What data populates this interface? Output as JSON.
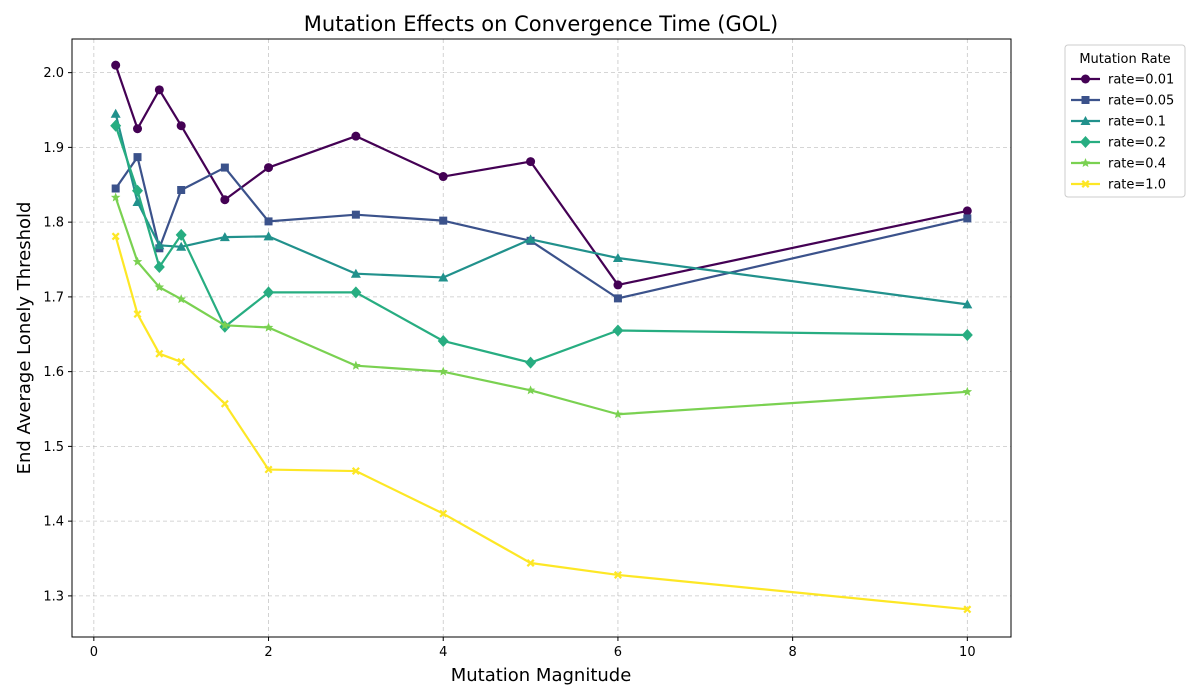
{
  "chart_data": {
    "type": "line",
    "title": "Mutation Effects on Convergence Time (GOL)",
    "xlabel": "Mutation Magnitude",
    "ylabel": "End Average Lonely Threshold",
    "xlim": [
      -0.25,
      10.5
    ],
    "ylim": [
      1.245,
      2.045
    ],
    "xticks": [
      0,
      2,
      4,
      6,
      8,
      10
    ],
    "yticks": [
      1.3,
      1.4,
      1.5,
      1.6,
      1.7,
      1.8,
      1.9,
      2.0
    ],
    "xtick_labels": [
      "0",
      "2",
      "4",
      "6",
      "8",
      "10"
    ],
    "ytick_labels": [
      "1.3",
      "1.4",
      "1.5",
      "1.6",
      "1.7",
      "1.8",
      "1.9",
      "2.0"
    ],
    "grid": true,
    "legend_title": "Mutation Rate",
    "legend_position": "outside-right",
    "x": [
      0.25,
      0.5,
      0.75,
      1,
      1.5,
      2,
      3,
      4,
      5,
      6,
      10
    ],
    "series": [
      {
        "name": "rate=0.01",
        "color": "#440154",
        "marker": "circle",
        "values": [
          2.01,
          1.925,
          1.977,
          1.929,
          1.83,
          1.873,
          1.915,
          1.861,
          1.881,
          1.716,
          1.815
        ]
      },
      {
        "name": "rate=0.05",
        "color": "#3b528b",
        "marker": "square",
        "values": [
          1.845,
          1.887,
          1.765,
          1.843,
          1.873,
          1.801,
          1.81,
          1.802,
          1.775,
          1.698,
          1.805
        ]
      },
      {
        "name": "rate=0.1",
        "color": "#21918c",
        "marker": "triangle",
        "values": [
          1.945,
          1.827,
          1.769,
          1.767,
          1.78,
          1.781,
          1.731,
          1.726,
          1.777,
          1.752,
          1.69
        ]
      },
      {
        "name": "rate=0.2",
        "color": "#27ad81",
        "marker": "diamond",
        "values": [
          1.929,
          1.842,
          1.74,
          1.783,
          1.66,
          1.706,
          1.706,
          1.641,
          1.612,
          1.655,
          1.649
        ]
      },
      {
        "name": "rate=0.4",
        "color": "#7ad151",
        "marker": "star",
        "values": [
          1.833,
          1.747,
          1.713,
          1.697,
          1.662,
          1.659,
          1.608,
          1.6,
          1.575,
          1.543,
          1.573
        ]
      },
      {
        "name": "rate=1.0",
        "color": "#fde725",
        "marker": "x",
        "values": [
          1.781,
          1.677,
          1.624,
          1.613,
          1.557,
          1.469,
          1.467,
          1.41,
          1.344,
          1.328,
          1.282
        ]
      }
    ]
  }
}
